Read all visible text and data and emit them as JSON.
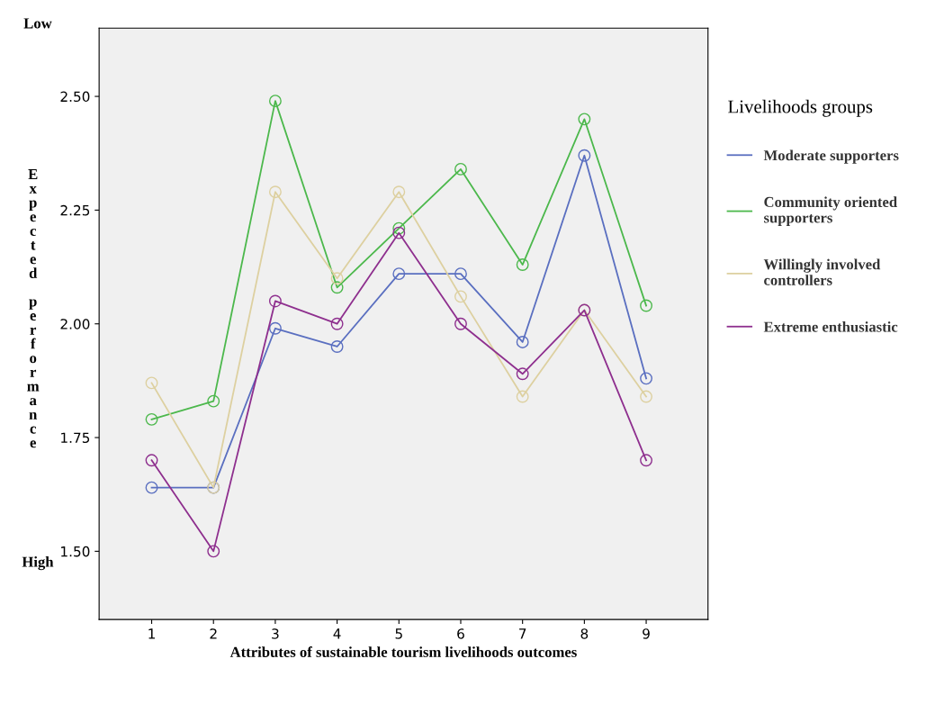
{
  "chart_data": {
    "type": "line",
    "xlabel": "Attributes of sustainable tourism livelihoods outcomes",
    "ylabel": "Expected performance",
    "legend_title": "Livelihoods groups",
    "annotations": [
      "Low",
      "High"
    ],
    "x": [
      1,
      2,
      3,
      4,
      5,
      6,
      7,
      8,
      9
    ],
    "xlim": [
      0.15,
      10
    ],
    "xticks": [
      1,
      2,
      3,
      4,
      5,
      6,
      7,
      8,
      9
    ],
    "ylim": [
      1.35,
      2.65
    ],
    "yticks": [
      {
        "value": 1.5,
        "label": "1.50"
      },
      {
        "value": 1.75,
        "label": "1.75"
      },
      {
        "value": 2.0,
        "label": "2.00"
      },
      {
        "value": 2.25,
        "label": "2.25"
      },
      {
        "value": 2.5,
        "label": "2.50"
      }
    ],
    "marker": "circle",
    "line_style": "solid",
    "grid": false,
    "legend": "right",
    "series": [
      {
        "name": "Moderate supporters",
        "color": "#5a6fc0",
        "values": [
          1.64,
          1.64,
          1.99,
          1.95,
          2.11,
          2.11,
          1.96,
          2.37,
          1.88
        ]
      },
      {
        "name": "Community oriented supporters",
        "color": "#4cb84c",
        "values": [
          1.79,
          1.83,
          2.49,
          2.08,
          2.21,
          2.34,
          2.13,
          2.45,
          2.04
        ]
      },
      {
        "name": "Willingly involved controllers",
        "color": "#ddd0a0",
        "values": [
          1.87,
          1.64,
          2.29,
          2.1,
          2.29,
          2.06,
          1.84,
          2.03,
          1.84
        ]
      },
      {
        "name": "Extreme enthusiastic",
        "color": "#8e2f8e",
        "values": [
          1.7,
          1.5,
          2.05,
          2.0,
          2.2,
          2.0,
          1.89,
          2.03,
          1.7
        ]
      }
    ]
  }
}
